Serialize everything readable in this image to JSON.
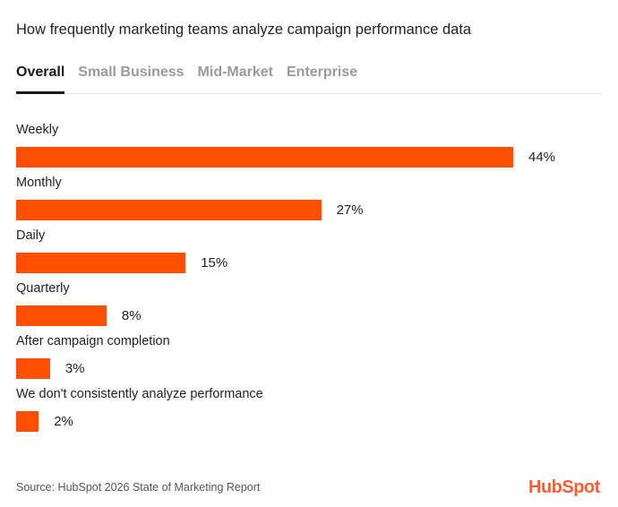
{
  "chart_data": {
    "type": "bar",
    "orientation": "horizontal",
    "title": "How frequently marketing teams analyze campaign performance data",
    "categories": [
      "Weekly",
      "Monthly",
      "Daily",
      "Quarterly",
      "After campaign completion",
      "We don't consistently analyze performance"
    ],
    "values": [
      44,
      27,
      15,
      8,
      3,
      2
    ],
    "value_labels": [
      "44%",
      "27%",
      "15%",
      "8%",
      "3%",
      "2%"
    ],
    "unit": "%",
    "bar_color": "#ff4f00",
    "grid": false,
    "legend": "none"
  },
  "tabs": [
    {
      "label": "Overall",
      "active": true
    },
    {
      "label": "Small Business",
      "active": false
    },
    {
      "label": "Mid-Market",
      "active": false
    },
    {
      "label": "Enterprise",
      "active": false
    }
  ],
  "footer": {
    "source": "Source: HubSpot 2026 State of Marketing Report",
    "logo": "HubSpot"
  }
}
